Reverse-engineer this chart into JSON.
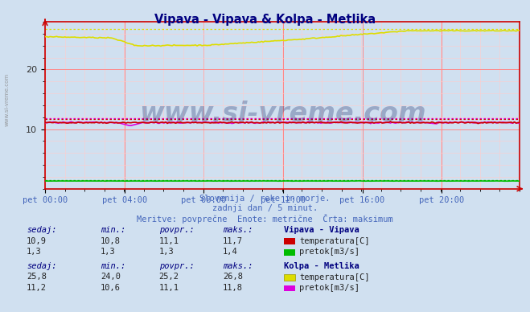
{
  "title": "Vipava - Vipava & Kolpa - Metlika",
  "title_color": "#000080",
  "bg_color": "#d0e0f0",
  "plot_bg_color": "#d0e0f0",
  "grid_color_major": "#ff8888",
  "grid_color_minor": "#ffcccc",
  "xlabel_ticks": [
    "pet 00:00",
    "pet 04:00",
    "pet 08:00",
    "pet 12:00",
    "pet 16:00",
    "pet 20:00"
  ],
  "xlabel_tick_positions": [
    0,
    48,
    96,
    144,
    192,
    240
  ],
  "total_points": 288,
  "ylim": [
    0,
    28
  ],
  "yticks": [
    10,
    20
  ],
  "axis_color": "#cc0000",
  "watermark": "www.si-vreme.com",
  "subtitle1": "Slovenija / reke in morje.",
  "subtitle2": "zadnji dan / 5 minut.",
  "subtitle3": "Meritve: povprečne  Enote: metrične  Črta: maksimum",
  "subtitle_color": "#4466bb",
  "legend_label_color": "#000080",
  "vipava_temp_color": "#cc0000",
  "vipava_pretok_color": "#00bb00",
  "kolpa_temp_color": "#dddd00",
  "kolpa_pretok_color": "#dd00dd",
  "vipava_temp_sedaj": "10,9",
  "vipava_temp_min": "10,8",
  "vipava_temp_povpr": "11,1",
  "vipava_temp_maks": "11,7",
  "vipava_pretok_sedaj": "1,3",
  "vipava_pretok_min": "1,3",
  "vipava_pretok_povpr": "1,3",
  "vipava_pretok_maks": "1,4",
  "kolpa_temp_sedaj": "25,8",
  "kolpa_temp_min": "24,0",
  "kolpa_temp_povpr": "25,2",
  "kolpa_temp_maks": "26,8",
  "kolpa_pretok_sedaj": "11,2",
  "kolpa_pretok_min": "10,6",
  "kolpa_pretok_povpr": "11,1",
  "kolpa_pretok_maks": "11,8",
  "vipava_temp_maks_val": 11.7,
  "vipava_pretok_maks_val": 1.4,
  "kolpa_temp_maks_val": 26.8,
  "kolpa_pretok_maks_val": 11.8
}
